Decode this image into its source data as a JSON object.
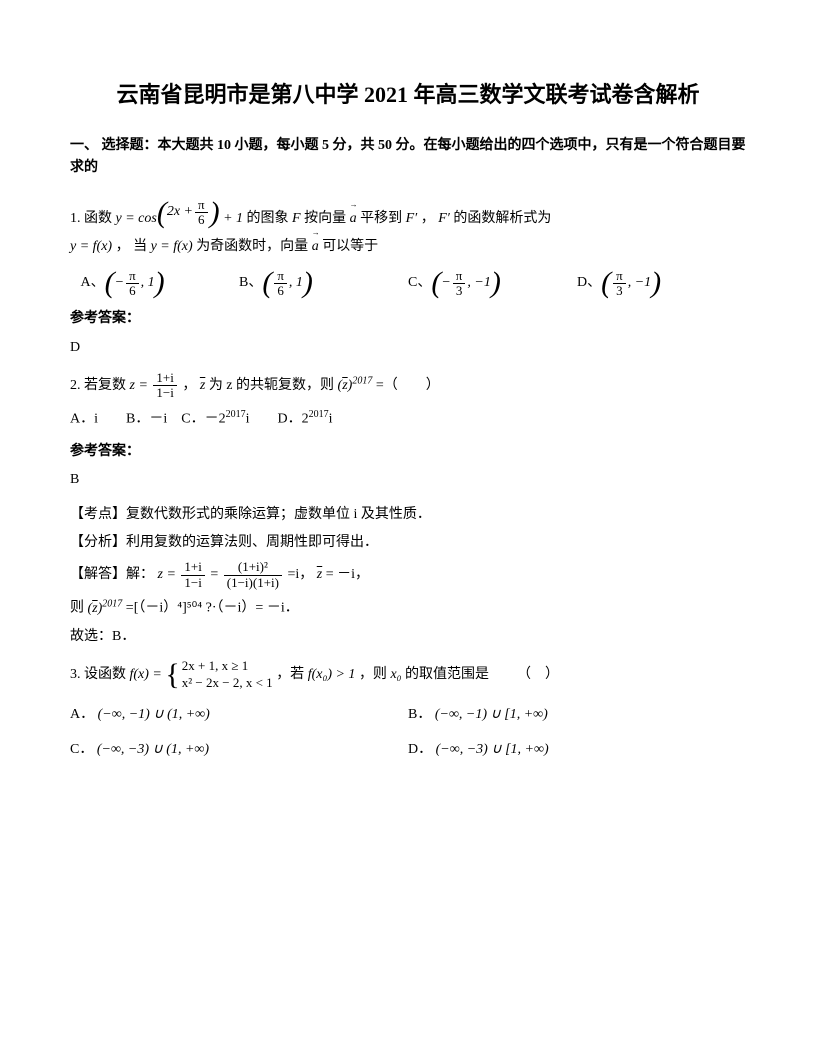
{
  "title": "云南省昆明市是第八中学 2021 年高三数学文联考试卷含解析",
  "section1": "一、 选择题：本大题共 10 小题，每小题 5 分，共 50 分。在每小题给出的四个选项中，只有是一个符合题目要求的",
  "q1": {
    "pre": "1. 函数",
    "func": "y = cos(2x + π/6) + 1",
    "mid1": "的图象",
    "F": "F",
    "mid2": "按向量",
    "a": "a",
    "mid3": "平移到",
    "Fp": "F′",
    "comma": "，",
    "mid4": "的函数解析式为",
    "line2a": "y = f(x)",
    "line2b": "， 当",
    "line2c": "y = f(x)",
    "line2d": "为奇函数时，向量",
    "line2e": "a",
    "line2f": "可以等于",
    "optA": "A、",
    "optB": "B、",
    "optC": "C、",
    "optD": "D、",
    "answer_label": "参考答案：",
    "answer": "D"
  },
  "q2": {
    "pre": "2. 若复数",
    "z": "z =",
    "mid1": "，",
    "zbar": "z",
    "mid2": "为 z 的共轭复数，则",
    "expr": "2017",
    "mid3": "=（　　）",
    "opts": "A．i　　B．－i　C．－2",
    "opts2": "i　　D．2",
    "opts3": "i",
    "exp2017": "2017",
    "answer_label": "参考答案：",
    "answer": "B",
    "kao": "【考点】复数代数形式的乘除运算；虚数单位 i 及其性质．",
    "fenxi": "【分析】利用复数的运算法则、周期性即可得出．",
    "jieda_pre": "【解答】解：",
    "jieda_mid1": "=",
    "jieda_mid2": "=i，",
    "jieda_mid3": "= －i，",
    "ze": "则",
    "ze_tail": "=[（－i）⁴]⁵⁰⁴ ?·（－i）= －i．",
    "guxuan": "故选：B．"
  },
  "q3": {
    "pre": "3. 设函数",
    "f": "f(x) =",
    "pw1": "2x + 1, x ≥ 1",
    "pw2": "x² − 2x − 2, x < 1",
    "mid1": "，若",
    "cond": "f(x₀) > 1",
    "mid2": "，则",
    "x0": "x₀",
    "mid3": "的取值范围是",
    "blank": "（　）",
    "optA_label": "A．",
    "optA": "(−∞, −1) ∪ (1, +∞)",
    "optB_label": "B．",
    "optB": "(−∞, −1) ∪ [1, +∞)",
    "optC_label": "C．",
    "optC": "(−∞, −3) ∪ (1, +∞)",
    "optD_label": "D．",
    "optD": "(−∞, −3) ∪ [1, +∞)"
  }
}
